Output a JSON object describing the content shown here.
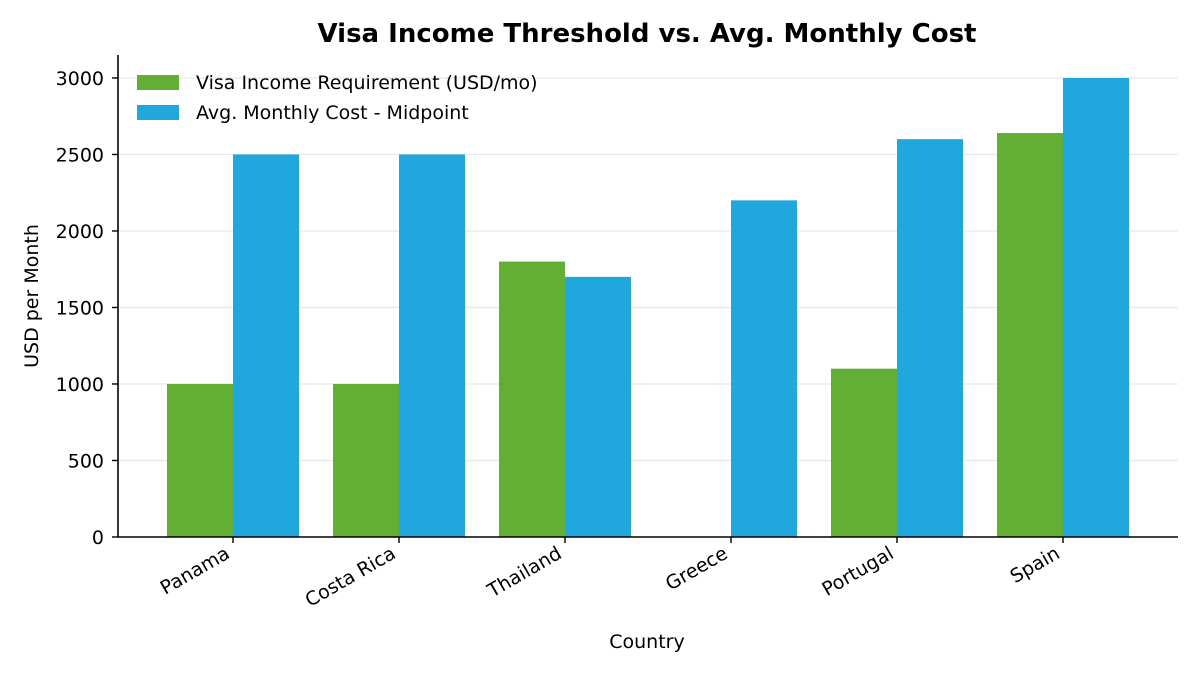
{
  "chart_data": {
    "type": "bar",
    "title": "Visa Income Threshold vs. Avg. Monthly Cost",
    "xlabel": "Country",
    "ylabel": "USD per Month",
    "categories": [
      "Panama",
      "Costa Rica",
      "Thailand",
      "Greece",
      "Portugal",
      "Spain"
    ],
    "series": [
      {
        "name": "Visa Income Requirement (USD/mo)",
        "color": "#63ae34",
        "values": [
          1000,
          1000,
          1800,
          0,
          1100,
          2640
        ]
      },
      {
        "name": "Avg. Monthly Cost - Midpoint",
        "color": "#1fa7de",
        "values": [
          2500,
          2500,
          1700,
          2200,
          2600,
          3000
        ]
      }
    ],
    "ylim": [
      0,
      3150
    ],
    "yticks": [
      0,
      500,
      1000,
      1500,
      2000,
      2500,
      3000
    ],
    "grid": "horizontal",
    "legend": "top-left"
  }
}
